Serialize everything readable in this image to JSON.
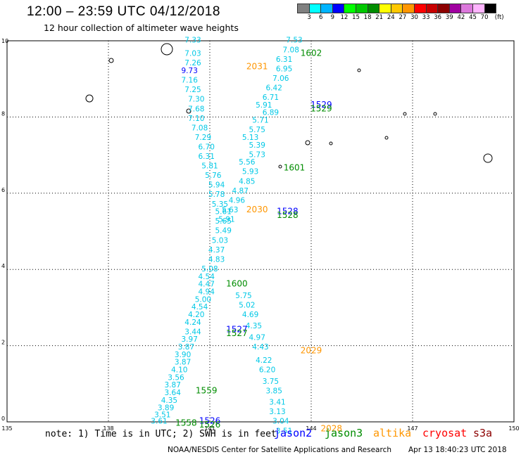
{
  "header": {
    "title": "12:00 – 23:59 UTC 04/12/2018",
    "subtitle": "12 hour collection of altimeter wave heights"
  },
  "legend": {
    "unit": "(ft)",
    "labels": [
      "3",
      "6",
      "9",
      "12",
      "15",
      "18",
      "21",
      "24",
      "27",
      "30",
      "33",
      "36",
      "39",
      "42",
      "45",
      "70"
    ],
    "colors": [
      "#808080",
      "#00ffff",
      "#00b4ff",
      "#0000ff",
      "#00ff00",
      "#00c800",
      "#008c00",
      "#ffff00",
      "#ffc800",
      "#ff9600",
      "#ff0000",
      "#c80000",
      "#8c0000",
      "#a000a0",
      "#dc78dc",
      "#ffb4ff",
      "#000000"
    ]
  },
  "axes": {
    "x_ticks": [
      135,
      138,
      141,
      144,
      147,
      150
    ],
    "y_ticks": [
      0,
      2,
      4,
      6,
      8,
      10
    ],
    "xlim": [
      135,
      150
    ],
    "ylim": [
      0,
      10
    ]
  },
  "track_colors": {
    "swh": "#00c8e6",
    "swh_blue": "#0000ff",
    "jason3": "#008c00",
    "altika": "#ff9600",
    "jason2": "#0000ff"
  },
  "swh_labels": [
    {
      "lon": 140.5,
      "lat": 9.95,
      "v": "7.33"
    },
    {
      "lon": 140.5,
      "lat": 9.6,
      "v": "7.03"
    },
    {
      "lon": 140.5,
      "lat": 9.35,
      "v": "7.26"
    },
    {
      "lon": 140.4,
      "lat": 9.15,
      "v": "9.73",
      "c": "swh_blue"
    },
    {
      "lon": 140.4,
      "lat": 8.9,
      "v": "7.16"
    },
    {
      "lon": 140.5,
      "lat": 8.65,
      "v": "7.25"
    },
    {
      "lon": 140.6,
      "lat": 8.4,
      "v": "7.30"
    },
    {
      "lon": 140.6,
      "lat": 8.15,
      "v": "7.68"
    },
    {
      "lon": 140.6,
      "lat": 7.9,
      "v": "7.10"
    },
    {
      "lon": 140.7,
      "lat": 7.65,
      "v": "7.08"
    },
    {
      "lon": 140.8,
      "lat": 7.4,
      "v": "7.29"
    },
    {
      "lon": 140.9,
      "lat": 7.15,
      "v": "6.70"
    },
    {
      "lon": 140.9,
      "lat": 6.9,
      "v": "6.31"
    },
    {
      "lon": 141.0,
      "lat": 6.65,
      "v": "5.81"
    },
    {
      "lon": 141.1,
      "lat": 6.4,
      "v": "5.76"
    },
    {
      "lon": 141.2,
      "lat": 6.15,
      "v": "5.94"
    },
    {
      "lon": 141.2,
      "lat": 5.9,
      "v": "5.78"
    },
    {
      "lon": 141.3,
      "lat": 5.65,
      "v": "5.35"
    },
    {
      "lon": 141.4,
      "lat": 5.45,
      "v": "5.61"
    },
    {
      "lon": 141.4,
      "lat": 5.2,
      "v": "5.65"
    },
    {
      "lon": 141.4,
      "lat": 4.95,
      "v": "5.49"
    },
    {
      "lon": 141.3,
      "lat": 4.7,
      "v": "5.03"
    },
    {
      "lon": 141.2,
      "lat": 4.45,
      "v": "4.37"
    },
    {
      "lon": 141.2,
      "lat": 4.2,
      "v": "4.83"
    },
    {
      "lon": 141.0,
      "lat": 3.95,
      "v": "5.08"
    },
    {
      "lon": 140.9,
      "lat": 3.75,
      "v": "4.54"
    },
    {
      "lon": 140.9,
      "lat": 3.55,
      "v": "4.47"
    },
    {
      "lon": 140.9,
      "lat": 3.35,
      "v": "4.94"
    },
    {
      "lon": 140.8,
      "lat": 3.15,
      "v": "5.00"
    },
    {
      "lon": 140.7,
      "lat": 2.95,
      "v": "4.54"
    },
    {
      "lon": 140.6,
      "lat": 2.75,
      "v": "4.20"
    },
    {
      "lon": 140.5,
      "lat": 2.55,
      "v": "4.24"
    },
    {
      "lon": 140.5,
      "lat": 2.3,
      "v": "3.44"
    },
    {
      "lon": 140.4,
      "lat": 2.1,
      "v": "3.97"
    },
    {
      "lon": 140.3,
      "lat": 1.9,
      "v": "3.87"
    },
    {
      "lon": 140.2,
      "lat": 1.7,
      "v": "3.90"
    },
    {
      "lon": 140.2,
      "lat": 1.5,
      "v": "3.87"
    },
    {
      "lon": 140.1,
      "lat": 1.3,
      "v": "4.10"
    },
    {
      "lon": 140.0,
      "lat": 1.1,
      "v": "3.56"
    },
    {
      "lon": 139.9,
      "lat": 0.9,
      "v": "3.87"
    },
    {
      "lon": 139.9,
      "lat": 0.7,
      "v": "3.64"
    },
    {
      "lon": 139.8,
      "lat": 0.5,
      "v": "4.35"
    },
    {
      "lon": 139.7,
      "lat": 0.3,
      "v": "3.89"
    },
    {
      "lon": 139.6,
      "lat": 0.12,
      "v": "3.51"
    },
    {
      "lon": 139.5,
      "lat": -0.05,
      "v": "3.61"
    },
    {
      "lon": 143.5,
      "lat": 9.95,
      "v": "7.53"
    },
    {
      "lon": 143.4,
      "lat": 9.7,
      "v": "7.08"
    },
    {
      "lon": 143.2,
      "lat": 9.45,
      "v": "6.31"
    },
    {
      "lon": 143.2,
      "lat": 9.2,
      "v": "6.95"
    },
    {
      "lon": 143.1,
      "lat": 8.95,
      "v": "7.06"
    },
    {
      "lon": 142.9,
      "lat": 8.7,
      "v": "6.42"
    },
    {
      "lon": 142.8,
      "lat": 8.45,
      "v": "6.71"
    },
    {
      "lon": 142.6,
      "lat": 8.25,
      "v": "5.91"
    },
    {
      "lon": 142.8,
      "lat": 8.05,
      "v": "6.89"
    },
    {
      "lon": 142.5,
      "lat": 7.85,
      "v": "5.71"
    },
    {
      "lon": 142.4,
      "lat": 7.6,
      "v": "5.75"
    },
    {
      "lon": 142.2,
      "lat": 7.4,
      "v": "5.13"
    },
    {
      "lon": 142.4,
      "lat": 7.2,
      "v": "5.39"
    },
    {
      "lon": 142.4,
      "lat": 6.95,
      "v": "5.73"
    },
    {
      "lon": 142.1,
      "lat": 6.75,
      "v": "5.56"
    },
    {
      "lon": 142.2,
      "lat": 6.5,
      "v": "5.93"
    },
    {
      "lon": 142.1,
      "lat": 6.25,
      "v": "4.85"
    },
    {
      "lon": 141.9,
      "lat": 6.0,
      "v": "4.87"
    },
    {
      "lon": 141.8,
      "lat": 5.75,
      "v": "4.96"
    },
    {
      "lon": 141.6,
      "lat": 5.5,
      "v": "5.63"
    },
    {
      "lon": 141.5,
      "lat": 5.25,
      "v": "5.91"
    },
    {
      "lon": 142.0,
      "lat": 3.25,
      "v": "5.75"
    },
    {
      "lon": 142.1,
      "lat": 3.0,
      "v": "5.02"
    },
    {
      "lon": 142.2,
      "lat": 2.75,
      "v": "4.69"
    },
    {
      "lon": 142.3,
      "lat": 2.45,
      "v": "4.35"
    },
    {
      "lon": 142.4,
      "lat": 2.15,
      "v": "4.97"
    },
    {
      "lon": 142.5,
      "lat": 1.9,
      "v": "4.43"
    },
    {
      "lon": 142.6,
      "lat": 1.55,
      "v": "4.22"
    },
    {
      "lon": 142.7,
      "lat": 1.3,
      "v": "6.20"
    },
    {
      "lon": 142.8,
      "lat": 1.0,
      "v": "3.75"
    },
    {
      "lon": 142.9,
      "lat": 0.75,
      "v": "3.85"
    },
    {
      "lon": 143.0,
      "lat": 0.45,
      "v": "3.41"
    },
    {
      "lon": 143.0,
      "lat": 0.2,
      "v": "3.13"
    },
    {
      "lon": 143.1,
      "lat": -0.05,
      "v": "3.04"
    },
    {
      "lon": 143.2,
      "lat": -0.3,
      "v": "3.51"
    }
  ],
  "time_labels": [
    {
      "lon": 142.4,
      "lat": 9.25,
      "t": "2031",
      "c": "altika"
    },
    {
      "lon": 144.0,
      "lat": 9.6,
      "t": "1602",
      "c": "jason3"
    },
    {
      "lon": 144.3,
      "lat": 8.25,
      "t": "1529",
      "c": "jason2"
    },
    {
      "lon": 144.3,
      "lat": 8.15,
      "t": "1529",
      "c": "jason3"
    },
    {
      "lon": 143.5,
      "lat": 6.6,
      "t": "1601",
      "c": "jason3"
    },
    {
      "lon": 142.4,
      "lat": 5.5,
      "t": "2030",
      "c": "altika"
    },
    {
      "lon": 143.3,
      "lat": 5.45,
      "t": "1528",
      "c": "jason2"
    },
    {
      "lon": 143.3,
      "lat": 5.35,
      "t": "1528",
      "c": "jason3"
    },
    {
      "lon": 141.8,
      "lat": 3.55,
      "t": "1600",
      "c": "jason3"
    },
    {
      "lon": 141.8,
      "lat": 2.35,
      "t": "1527",
      "c": "jason2"
    },
    {
      "lon": 141.8,
      "lat": 2.25,
      "t": "1527",
      "c": "jason3"
    },
    {
      "lon": 144.0,
      "lat": 1.8,
      "t": "2029",
      "c": "altika"
    },
    {
      "lon": 140.9,
      "lat": 0.75,
      "t": "1559",
      "c": "jason3"
    },
    {
      "lon": 140.3,
      "lat": -0.1,
      "t": "1558",
      "c": "jason3"
    },
    {
      "lon": 141.0,
      "lat": -0.05,
      "t": "1526",
      "c": "jason2"
    },
    {
      "lon": 141.0,
      "lat": -0.15,
      "t": "1526",
      "c": "jason3"
    },
    {
      "lon": 144.6,
      "lat": -0.25,
      "t": "2028",
      "c": "altika"
    }
  ],
  "footer": {
    "note": "note: 1) Time is in UTC; 2) SWH is in feet",
    "satellites": [
      {
        "name": "jason2",
        "color": "#0000ff"
      },
      {
        "name": "jason3",
        "color": "#008c00"
      },
      {
        "name": "altika",
        "color": "#ff9600"
      },
      {
        "name": "cryosat",
        "color": "#ff0000"
      },
      {
        "name": "s3a",
        "color": "#8c0000"
      }
    ],
    "credit": "NOAA/NESDIS Center for Satellite Applications and Research",
    "timestamp": "Apr 13 18:40:23 UTC 2018"
  }
}
